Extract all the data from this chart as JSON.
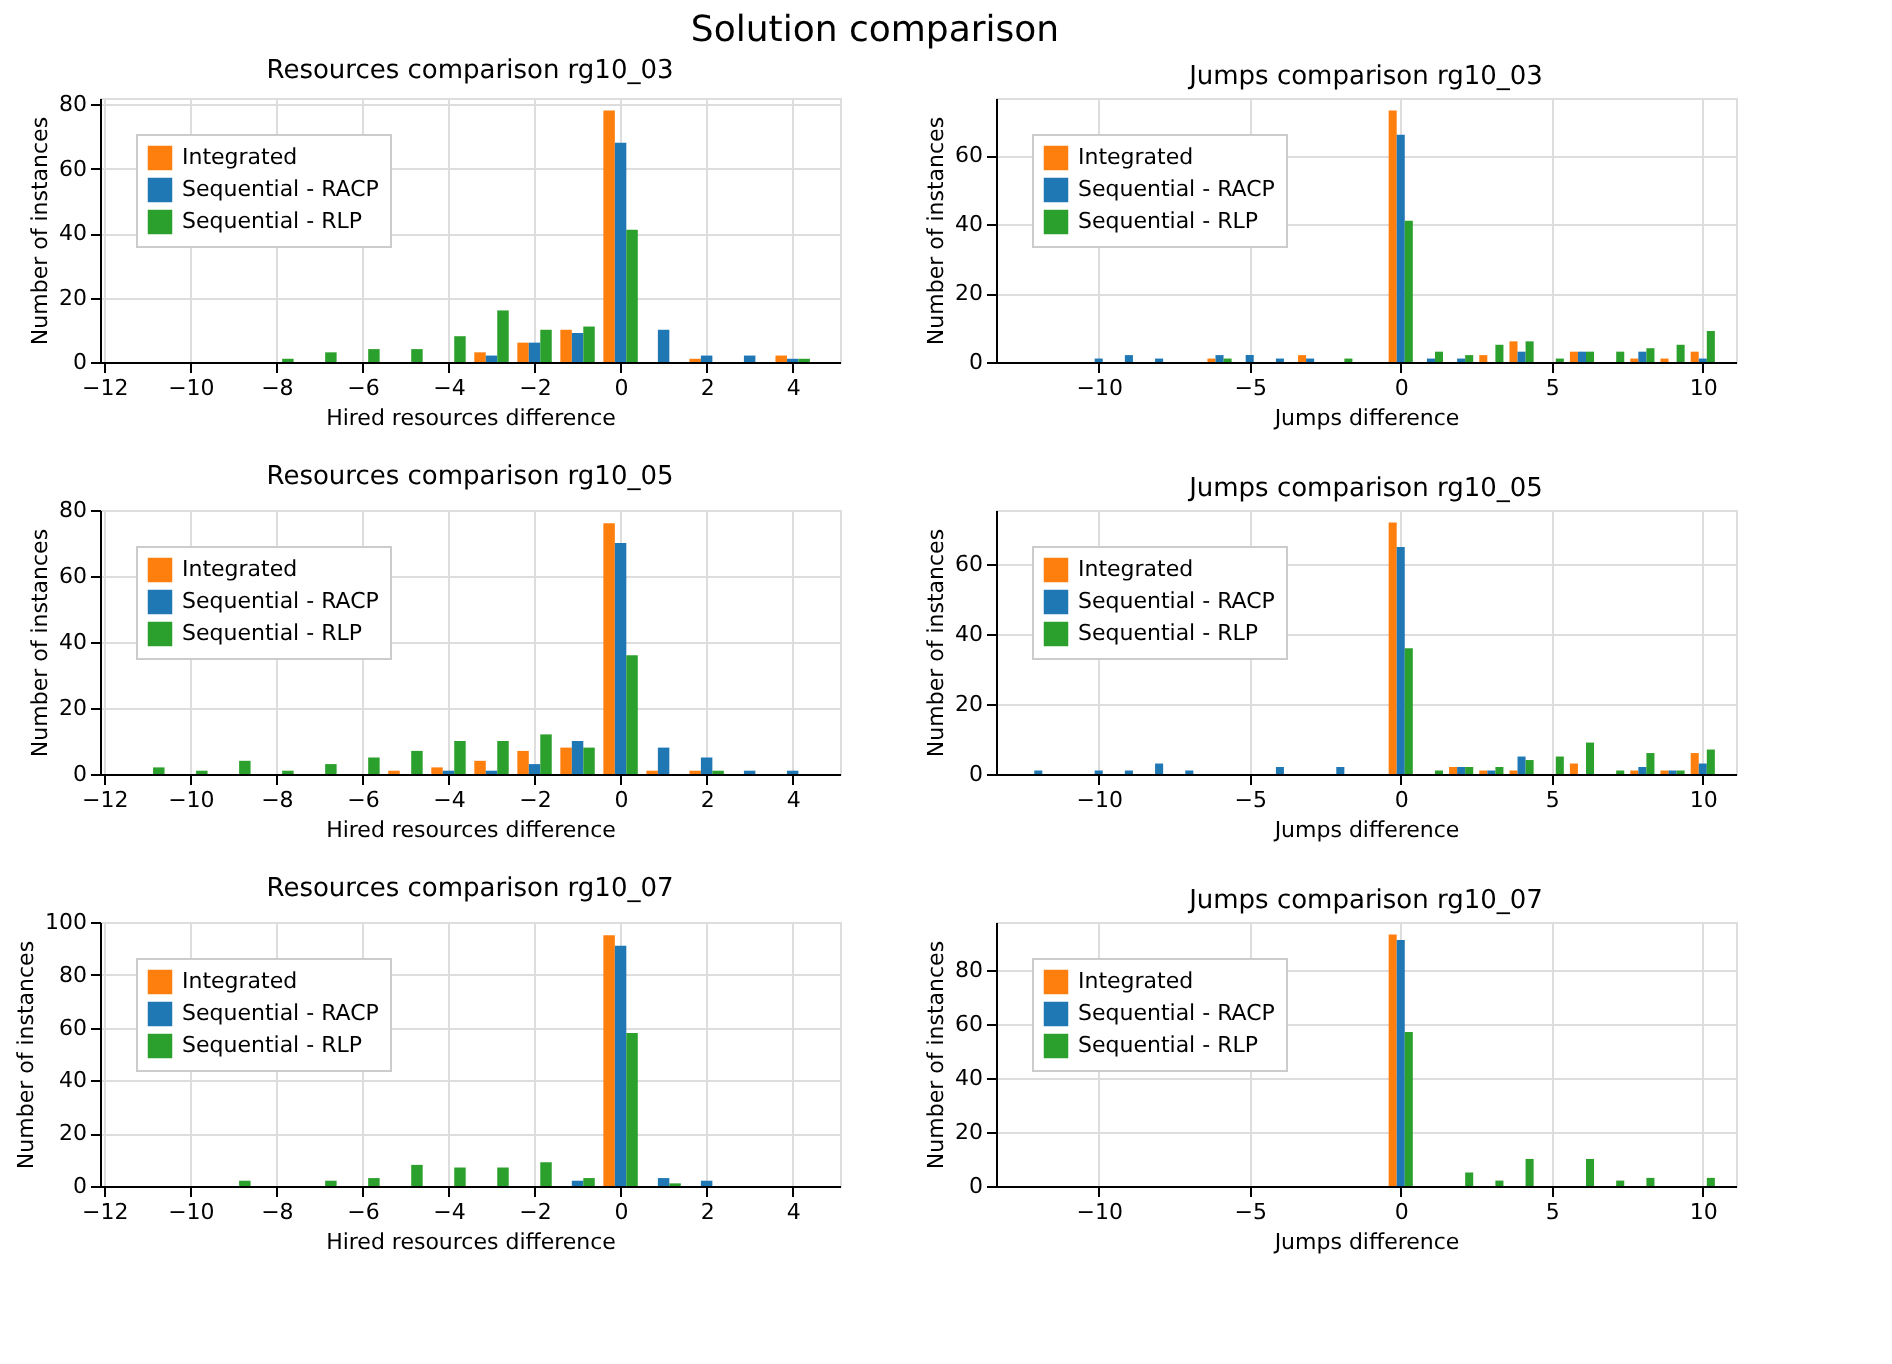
{
  "chart_data": [
    {
      "type": "bar",
      "title": "Resources comparison rg10_03",
      "annotations": [
        "Solution comparison"
      ],
      "xlabel": "Hired resources difference",
      "ylabel": "Number of instances",
      "x": [
        -11,
        -10,
        -9,
        -8,
        -7,
        -6,
        -5,
        -4,
        -3,
        -2,
        -1,
        0,
        1,
        2,
        3,
        4
      ],
      "xlim": [
        -12.1,
        5.1
      ],
      "xticks": [
        -12,
        -10,
        -8,
        -6,
        -4,
        -2,
        0,
        2,
        4
      ],
      "ylim": [
        0,
        81.9
      ],
      "yticks": [
        0,
        20,
        40,
        60,
        80
      ],
      "grid": true,
      "legend": "top left",
      "series": [
        {
          "name": "Integrated",
          "color": "#ff7f0e",
          "values": [
            0,
            0,
            0,
            0,
            0,
            0,
            0,
            0,
            3,
            6,
            10,
            78,
            0,
            1,
            0,
            2
          ]
        },
        {
          "name": "Sequential - RACP",
          "color": "#1f77b4",
          "values": [
            0,
            0,
            0,
            0,
            0,
            0,
            0,
            0,
            2,
            6,
            9,
            68,
            10,
            2,
            2,
            1
          ]
        },
        {
          "name": "Sequential - RLP",
          "color": "#2ca02c",
          "values": [
            0,
            0,
            0,
            1,
            3,
            4,
            4,
            8,
            16,
            10,
            11,
            41,
            0,
            0,
            0,
            1
          ]
        }
      ]
    },
    {
      "type": "bar",
      "title": "Jumps comparison rg10_03",
      "xlabel": "Jumps difference",
      "ylabel": "Number of instances",
      "x": [
        -12,
        -11,
        -10,
        -9,
        -8,
        -7,
        -6,
        -5,
        -4,
        -3,
        -2,
        -1,
        0,
        1,
        2,
        3,
        4,
        5,
        6,
        7,
        8,
        9,
        10
      ],
      "xlim": [
        -13.4,
        11.1
      ],
      "xticks": [
        -10,
        -5,
        0,
        5,
        10
      ],
      "ylim": [
        0,
        76.65
      ],
      "yticks": [
        0,
        20,
        40,
        60
      ],
      "grid": true,
      "legend": "top left",
      "series": [
        {
          "name": "Integrated",
          "color": "#ff7f0e",
          "values": [
            0,
            0,
            0,
            0,
            0,
            0,
            1,
            0,
            0,
            2,
            0,
            0,
            73,
            0,
            0,
            2,
            6,
            0,
            3,
            0,
            1,
            1,
            3
          ]
        },
        {
          "name": "Sequential - RACP",
          "color": "#1f77b4",
          "values": [
            0,
            0,
            1,
            2,
            1,
            0,
            2,
            2,
            1,
            1,
            0,
            0,
            66,
            1,
            1,
            0,
            3,
            0,
            3,
            0,
            3,
            0,
            1
          ]
        },
        {
          "name": "Sequential - RLP",
          "color": "#2ca02c",
          "values": [
            0,
            0,
            0,
            0,
            0,
            0,
            1,
            0,
            0,
            0,
            1,
            0,
            41,
            3,
            2,
            5,
            6,
            1,
            3,
            3,
            4,
            5,
            9
          ]
        }
      ]
    },
    {
      "type": "bar",
      "title": "Resources comparison rg10_05",
      "xlabel": "Hired resources difference",
      "ylabel": "Number of instances",
      "x": [
        -11,
        -10,
        -9,
        -8,
        -7,
        -6,
        -5,
        -4,
        -3,
        -2,
        -1,
        0,
        1,
        2,
        3,
        4
      ],
      "xlim": [
        -12.1,
        5.1
      ],
      "xticks": [
        -12,
        -10,
        -8,
        -6,
        -4,
        -2,
        0,
        2,
        4
      ],
      "ylim": [
        0,
        80
      ],
      "yticks": [
        0,
        20,
        40,
        60,
        80
      ],
      "grid": true,
      "legend": "top left",
      "series": [
        {
          "name": "Integrated",
          "color": "#ff7f0e",
          "values": [
            0,
            0,
            0,
            0,
            0,
            0,
            1,
            2,
            4,
            7,
            8,
            76,
            1,
            1,
            0,
            0
          ]
        },
        {
          "name": "Sequential - RACP",
          "color": "#1f77b4",
          "values": [
            0,
            0,
            0,
            0,
            0,
            0,
            0,
            1,
            1,
            3,
            10,
            70,
            8,
            5,
            1,
            1
          ]
        },
        {
          "name": "Sequential - RLP",
          "color": "#2ca02c",
          "values": [
            2,
            1,
            4,
            1,
            3,
            5,
            7,
            10,
            10,
            12,
            8,
            36,
            0,
            1,
            0,
            0
          ]
        }
      ]
    },
    {
      "type": "bar",
      "title": "Jumps comparison rg10_05",
      "xlabel": "Jumps difference",
      "ylabel": "Number of instances",
      "x": [
        -12,
        -11,
        -10,
        -9,
        -8,
        -7,
        -6,
        -5,
        -4,
        -3,
        -2,
        -1,
        0,
        1,
        2,
        3,
        4,
        5,
        6,
        7,
        8,
        9,
        10
      ],
      "xlim": [
        -13.4,
        11.1
      ],
      "xticks": [
        -10,
        -5,
        0,
        5,
        10
      ],
      "ylim": [
        0,
        75.6
      ],
      "yticks": [
        0,
        20,
        40,
        60
      ],
      "grid": true,
      "legend": "top left",
      "series": [
        {
          "name": "Integrated",
          "color": "#ff7f0e",
          "values": [
            0,
            0,
            0,
            0,
            0,
            0,
            0,
            0,
            0,
            0,
            0,
            0,
            72,
            0,
            2,
            1,
            1,
            0,
            3,
            0,
            1,
            1,
            6
          ]
        },
        {
          "name": "Sequential - RACP",
          "color": "#1f77b4",
          "values": [
            1,
            0,
            1,
            1,
            3,
            1,
            0,
            0,
            2,
            0,
            2,
            0,
            65,
            0,
            2,
            1,
            5,
            0,
            0,
            0,
            2,
            1,
            3
          ]
        },
        {
          "name": "Sequential - RLP",
          "color": "#2ca02c",
          "values": [
            0,
            0,
            0,
            0,
            0,
            0,
            0,
            0,
            0,
            0,
            0,
            0,
            36,
            1,
            2,
            2,
            4,
            5,
            9,
            1,
            6,
            1,
            7
          ]
        }
      ]
    },
    {
      "type": "bar",
      "title": "Resources comparison rg10_07",
      "xlabel": "Hired resources difference",
      "ylabel": "Number of instances",
      "x": [
        -11,
        -10,
        -9,
        -8,
        -7,
        -6,
        -5,
        -4,
        -3,
        -2,
        -1,
        0,
        1,
        2,
        3,
        4
      ],
      "xlim": [
        -12.1,
        5.1
      ],
      "xticks": [
        -12,
        -10,
        -8,
        -6,
        -4,
        -2,
        0,
        2,
        4
      ],
      "ylim": [
        0,
        100
      ],
      "yticks": [
        0,
        20,
        40,
        60,
        80,
        100
      ],
      "grid": true,
      "legend": "top left",
      "series": [
        {
          "name": "Integrated",
          "color": "#ff7f0e",
          "values": [
            0,
            0,
            0,
            0,
            0,
            0,
            0,
            0,
            0,
            0,
            0,
            95,
            0,
            0,
            0,
            0
          ]
        },
        {
          "name": "Sequential - RACP",
          "color": "#1f77b4",
          "values": [
            0,
            0,
            0,
            0,
            0,
            0,
            0,
            0,
            0,
            0,
            2,
            91,
            3,
            2,
            0,
            0
          ]
        },
        {
          "name": "Sequential - RLP",
          "color": "#2ca02c",
          "values": [
            0,
            0,
            2,
            0,
            2,
            3,
            8,
            7,
            7,
            9,
            3,
            58,
            1,
            0,
            0,
            0
          ]
        }
      ]
    },
    {
      "type": "bar",
      "title": "Jumps comparison rg10_07",
      "xlabel": "Jumps difference",
      "ylabel": "Number of instances",
      "x": [
        -12,
        -11,
        -10,
        -9,
        -8,
        -7,
        -6,
        -5,
        -4,
        -3,
        -2,
        -1,
        0,
        1,
        2,
        3,
        4,
        5,
        6,
        7,
        8,
        9,
        10
      ],
      "xlim": [
        -13.4,
        11.1
      ],
      "xticks": [
        -10,
        -5,
        0,
        5,
        10
      ],
      "ylim": [
        0,
        97.65
      ],
      "yticks": [
        0,
        20,
        40,
        60,
        80
      ],
      "grid": true,
      "legend": "top left",
      "series": [
        {
          "name": "Integrated",
          "color": "#ff7f0e",
          "values": [
            0,
            0,
            0,
            0,
            0,
            0,
            0,
            0,
            0,
            0,
            0,
            0,
            93,
            0,
            0,
            0,
            0,
            0,
            0,
            0,
            0,
            0,
            0
          ]
        },
        {
          "name": "Sequential - RACP",
          "color": "#1f77b4",
          "values": [
            0,
            0,
            0,
            0,
            0,
            0,
            0,
            0,
            0,
            0,
            0,
            0,
            91,
            0,
            0,
            0,
            0,
            0,
            0,
            0,
            0,
            0,
            0
          ]
        },
        {
          "name": "Sequential - RLP",
          "color": "#2ca02c",
          "values": [
            0,
            0,
            0,
            0,
            0,
            0,
            0,
            0,
            0,
            0,
            0,
            0,
            57,
            0,
            5,
            2,
            10,
            0,
            10,
            2,
            3,
            0,
            3
          ]
        }
      ]
    }
  ]
}
